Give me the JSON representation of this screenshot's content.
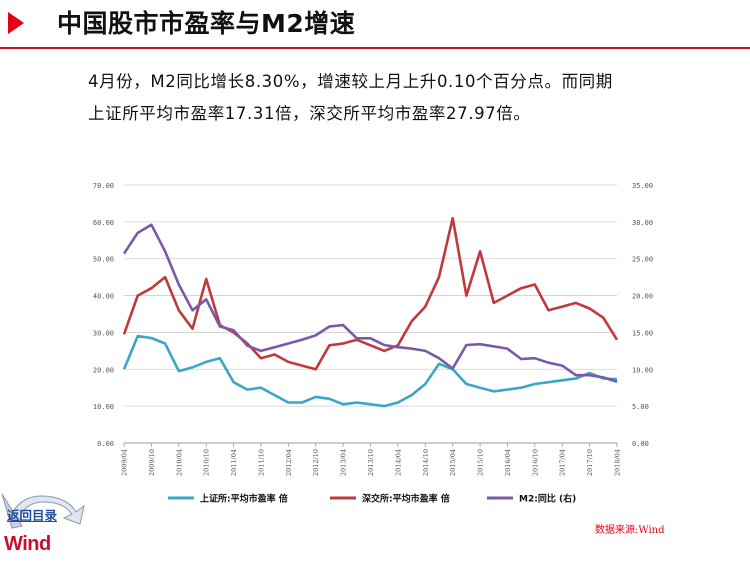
{
  "header": {
    "title": "中国股市市盈率与M2增速"
  },
  "description": {
    "line1": "4月份，M2同比增长8.30%，增速较上月上升0.10个百分点。而同期",
    "line2": "上证所平均市盈率17.31倍，深交所平均市盈率27.97倍。"
  },
  "footer": {
    "source": "数据来源:Wind",
    "back_link": "返回目录",
    "logo_text": "Wind"
  },
  "chart_data": {
    "type": "line",
    "x": [
      "2009/04",
      "2009/07",
      "2009/10",
      "2010/01",
      "2010/04",
      "2010/07",
      "2010/10",
      "2011/01",
      "2011/04",
      "2011/07",
      "2011/10",
      "2012/01",
      "2012/04",
      "2012/07",
      "2012/10",
      "2013/01",
      "2013/04",
      "2013/07",
      "2013/10",
      "2014/01",
      "2014/04",
      "2014/07",
      "2014/10",
      "2015/01",
      "2015/04",
      "2015/07",
      "2015/10",
      "2016/01",
      "2016/04",
      "2016/07",
      "2016/10",
      "2017/01",
      "2017/04",
      "2017/07",
      "2017/10",
      "2018/01",
      "2018/04"
    ],
    "x_tick_labels": [
      "2009/04",
      "2009/10",
      "2010/04",
      "2010/10",
      "2011/04",
      "2011/10",
      "2012/04",
      "2012/10",
      "2013/04",
      "2013/10",
      "2014/04",
      "2014/10",
      "2015/04",
      "2015/10",
      "2016/04",
      "2016/10",
      "2017/04",
      "2017/10",
      "2018/04"
    ],
    "y_left_ticks": [
      "0.00",
      "10.00",
      "20.00",
      "30.00",
      "40.00",
      "50.00",
      "60.00",
      "70.00"
    ],
    "y_right_ticks": [
      "0.00",
      "5.00",
      "10.00",
      "15.00",
      "20.00",
      "25.00",
      "30.00",
      "35.00"
    ],
    "ylim_left": [
      0,
      70
    ],
    "ylim_right": [
      0,
      35
    ],
    "grid": true,
    "legend_position": "bottom",
    "series": [
      {
        "name": "上证所:平均市盈率 倍",
        "axis": "left",
        "color": "#3ba7c7",
        "values": [
          20.0,
          29.0,
          28.5,
          27.0,
          19.5,
          20.5,
          22.0,
          23.0,
          16.5,
          14.5,
          15.0,
          13.0,
          11.0,
          11.0,
          12.5,
          12.0,
          10.5,
          11.0,
          10.5,
          10.0,
          11.0,
          13.0,
          16.0,
          21.5,
          20.0,
          16.0,
          15.0,
          14.0,
          14.5,
          15.0,
          16.0,
          16.5,
          17.0,
          17.5,
          19.0,
          17.5,
          17.3
        ]
      },
      {
        "name": "深交所:平均市盈率 倍",
        "axis": "left",
        "color": "#c0393b",
        "values": [
          29.5,
          40.0,
          42.0,
          45.0,
          36.0,
          31.0,
          44.5,
          32.0,
          30.0,
          27.0,
          23.0,
          24.0,
          22.0,
          21.0,
          20.0,
          26.5,
          27.0,
          28.0,
          26.5,
          25.0,
          26.5,
          33.0,
          37.0,
          45.0,
          61.0,
          40.0,
          52.0,
          38.0,
          40.0,
          42.0,
          43.0,
          36.0,
          37.0,
          38.0,
          36.5,
          34.0,
          28.0
        ]
      },
      {
        "name": "M2:同比 (右)",
        "axis": "right",
        "color": "#7a5aa6",
        "values": [
          25.7,
          28.5,
          29.6,
          26.0,
          21.5,
          18.0,
          19.5,
          15.8,
          15.3,
          13.2,
          12.5,
          13.0,
          13.5,
          14.0,
          14.6,
          15.8,
          16.0,
          14.2,
          14.2,
          13.3,
          13.0,
          12.8,
          12.5,
          11.5,
          10.1,
          13.3,
          13.4,
          13.1,
          12.8,
          11.4,
          11.5,
          10.9,
          10.5,
          9.2,
          9.2,
          8.9,
          8.3
        ]
      }
    ]
  }
}
